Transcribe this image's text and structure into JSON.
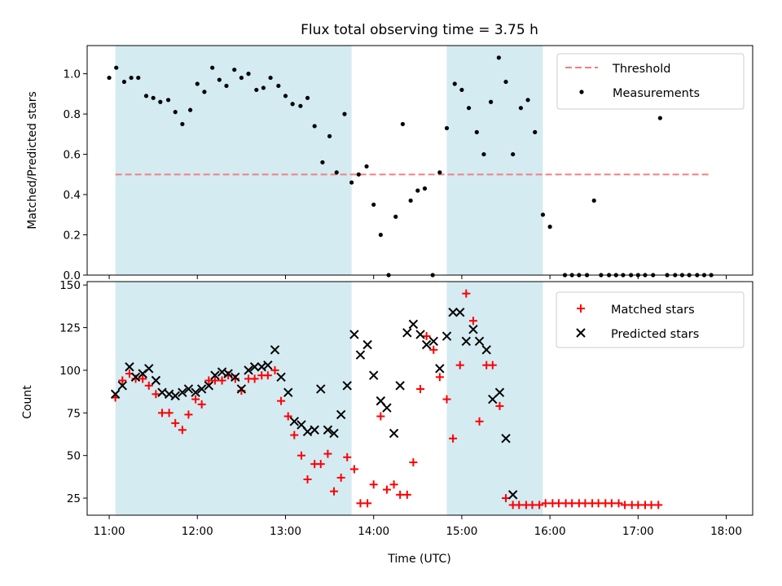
{
  "chart_data": {
    "title": "Flux total observing time = 3.75 h",
    "x_unit": "hours (UTC)",
    "xlabel": "Time (UTC)",
    "xlim": [
      10.75,
      18.3
    ],
    "xticks": [
      11,
      12,
      13,
      14,
      15,
      16,
      17,
      18
    ],
    "xtick_labels": [
      "11:00",
      "12:00",
      "13:00",
      "14:00",
      "15:00",
      "16:00",
      "17:00",
      "18:00"
    ],
    "shaded_intervals": [
      [
        11.07,
        13.75
      ],
      [
        14.83,
        15.92
      ]
    ],
    "shade_color": "#add8e6",
    "panels": [
      {
        "type": "scatter",
        "ylabel": "Matched/Predicted stars",
        "ylim": [
          0,
          1.14
        ],
        "yticks": [
          0.0,
          0.2,
          0.4,
          0.6,
          0.8,
          1.0
        ],
        "ytick_labels": [
          "0.0",
          "0.2",
          "0.4",
          "0.6",
          "0.8",
          "1.0"
        ],
        "legend_position": "top-right",
        "threshold": {
          "name": "Threshold",
          "y": 0.5,
          "x_range": [
            11.07,
            17.82
          ],
          "color": "#f08080"
        },
        "series": [
          {
            "name": "Measurements",
            "marker": "dot",
            "color": "#000000",
            "points": [
              [
                11.0,
                0.98
              ],
              [
                11.08,
                1.03
              ],
              [
                11.17,
                0.96
              ],
              [
                11.25,
                0.98
              ],
              [
                11.33,
                0.98
              ],
              [
                11.42,
                0.89
              ],
              [
                11.5,
                0.88
              ],
              [
                11.58,
                0.86
              ],
              [
                11.67,
                0.87
              ],
              [
                11.75,
                0.81
              ],
              [
                11.83,
                0.75
              ],
              [
                11.92,
                0.82
              ],
              [
                12.0,
                0.95
              ],
              [
                12.08,
                0.91
              ],
              [
                12.17,
                1.03
              ],
              [
                12.25,
                0.97
              ],
              [
                12.33,
                0.94
              ],
              [
                12.42,
                1.02
              ],
              [
                12.5,
                0.98
              ],
              [
                12.58,
                1.0
              ],
              [
                12.67,
                0.92
              ],
              [
                12.75,
                0.93
              ],
              [
                12.83,
                0.98
              ],
              [
                12.92,
                0.94
              ],
              [
                13.0,
                0.89
              ],
              [
                13.08,
                0.85
              ],
              [
                13.17,
                0.84
              ],
              [
                13.25,
                0.88
              ],
              [
                13.33,
                0.74
              ],
              [
                13.42,
                0.56
              ],
              [
                13.5,
                0.69
              ],
              [
                13.58,
                0.51
              ],
              [
                13.67,
                0.8
              ],
              [
                13.75,
                0.46
              ],
              [
                13.83,
                0.5
              ],
              [
                13.92,
                0.54
              ],
              [
                14.0,
                0.35
              ],
              [
                14.08,
                0.2
              ],
              [
                14.17,
                0.0
              ],
              [
                14.25,
                0.29
              ],
              [
                14.33,
                0.75
              ],
              [
                14.42,
                0.37
              ],
              [
                14.5,
                0.42
              ],
              [
                14.58,
                0.43
              ],
              [
                14.67,
                0.0
              ],
              [
                14.75,
                0.51
              ],
              [
                14.83,
                0.73
              ],
              [
                14.92,
                0.95
              ],
              [
                15.0,
                0.92
              ],
              [
                15.08,
                0.83
              ],
              [
                15.17,
                0.71
              ],
              [
                15.25,
                0.6
              ],
              [
                15.33,
                0.86
              ],
              [
                15.42,
                1.08
              ],
              [
                15.5,
                0.96
              ],
              [
                15.58,
                0.6
              ],
              [
                15.67,
                0.83
              ],
              [
                15.75,
                0.87
              ],
              [
                15.83,
                0.71
              ],
              [
                15.92,
                0.3
              ],
              [
                16.0,
                0.24
              ],
              [
                16.17,
                0.0
              ],
              [
                16.25,
                0.0
              ],
              [
                16.33,
                0.0
              ],
              [
                16.42,
                0.0
              ],
              [
                16.5,
                0.37
              ],
              [
                16.58,
                0.0
              ],
              [
                16.67,
                0.0
              ],
              [
                16.75,
                0.0
              ],
              [
                16.83,
                0.0
              ],
              [
                16.92,
                0.0
              ],
              [
                17.0,
                0.0
              ],
              [
                17.08,
                0.0
              ],
              [
                17.17,
                0.0
              ],
              [
                17.25,
                0.78
              ],
              [
                17.33,
                0.0
              ],
              [
                17.42,
                0.0
              ],
              [
                17.5,
                0.0
              ],
              [
                17.58,
                0.0
              ],
              [
                17.67,
                0.0
              ],
              [
                17.75,
                0.0
              ],
              [
                17.83,
                0.0
              ]
            ]
          }
        ]
      },
      {
        "type": "scatter",
        "ylabel": "Count",
        "ylim": [
          15,
          152
        ],
        "yticks": [
          25,
          50,
          75,
          100,
          125,
          150
        ],
        "ytick_labels": [
          "25",
          "50",
          "75",
          "100",
          "125",
          "150"
        ],
        "legend_position": "top-right",
        "series": [
          {
            "name": "Matched stars",
            "marker": "plus",
            "color": "#ff0000",
            "points": [
              [
                11.07,
                84
              ],
              [
                11.15,
                94
              ],
              [
                11.23,
                98
              ],
              [
                11.3,
                95
              ],
              [
                11.38,
                95
              ],
              [
                11.45,
                91
              ],
              [
                11.53,
                86
              ],
              [
                11.6,
                75
              ],
              [
                11.68,
                75
              ],
              [
                11.75,
                69
              ],
              [
                11.83,
                65
              ],
              [
                11.9,
                74
              ],
              [
                11.98,
                83
              ],
              [
                12.05,
                80
              ],
              [
                12.13,
                94
              ],
              [
                12.2,
                94
              ],
              [
                12.28,
                94
              ],
              [
                12.35,
                97
              ],
              [
                12.43,
                95
              ],
              [
                12.5,
                88
              ],
              [
                12.58,
                95
              ],
              [
                12.65,
                95
              ],
              [
                12.73,
                97
              ],
              [
                12.8,
                97
              ],
              [
                12.88,
                100
              ],
              [
                12.95,
                82
              ],
              [
                13.03,
                73
              ],
              [
                13.1,
                62
              ],
              [
                13.18,
                50
              ],
              [
                13.25,
                36
              ],
              [
                13.33,
                45
              ],
              [
                13.4,
                45
              ],
              [
                13.48,
                51
              ],
              [
                13.55,
                29
              ],
              [
                13.63,
                37
              ],
              [
                13.7,
                49
              ],
              [
                13.78,
                42
              ],
              [
                13.85,
                22
              ],
              [
                13.93,
                22
              ],
              [
                14.0,
                33
              ],
              [
                14.08,
                73
              ],
              [
                14.15,
                30
              ],
              [
                14.23,
                33
              ],
              [
                14.3,
                27
              ],
              [
                14.38,
                27
              ],
              [
                14.45,
                46
              ],
              [
                14.53,
                89
              ],
              [
                14.6,
                120
              ],
              [
                14.68,
                112
              ],
              [
                14.75,
                96
              ],
              [
                14.83,
                83
              ],
              [
                14.9,
                60
              ],
              [
                14.98,
                103
              ],
              [
                15.05,
                145
              ],
              [
                15.13,
                129
              ],
              [
                15.2,
                70
              ],
              [
                15.28,
                103
              ],
              [
                15.35,
                103
              ],
              [
                15.43,
                79
              ],
              [
                15.5,
                25
              ],
              [
                15.58,
                21
              ],
              [
                15.65,
                21
              ],
              [
                15.73,
                21
              ],
              [
                15.8,
                21
              ],
              [
                15.88,
                21
              ],
              [
                15.95,
                22
              ],
              [
                16.03,
                22
              ],
              [
                16.1,
                22
              ],
              [
                16.18,
                22
              ],
              [
                16.25,
                22
              ],
              [
                16.33,
                22
              ],
              [
                16.4,
                22
              ],
              [
                16.48,
                22
              ],
              [
                16.55,
                22
              ],
              [
                16.63,
                22
              ],
              [
                16.7,
                22
              ],
              [
                16.78,
                22
              ],
              [
                16.85,
                21
              ],
              [
                16.93,
                21
              ],
              [
                17.0,
                21
              ],
              [
                17.08,
                21
              ],
              [
                17.15,
                21
              ],
              [
                17.23,
                21
              ]
            ]
          },
          {
            "name": "Predicted stars",
            "marker": "x",
            "color": "#000000",
            "points": [
              [
                11.07,
                86
              ],
              [
                11.15,
                91
              ],
              [
                11.23,
                102
              ],
              [
                11.3,
                96
              ],
              [
                11.38,
                98
              ],
              [
                11.45,
                101
              ],
              [
                11.53,
                94
              ],
              [
                11.6,
                87
              ],
              [
                11.68,
                86
              ],
              [
                11.75,
                85
              ],
              [
                11.83,
                87
              ],
              [
                11.9,
                89
              ],
              [
                11.98,
                87
              ],
              [
                12.05,
                89
              ],
              [
                12.13,
                91
              ],
              [
                12.2,
                97
              ],
              [
                12.28,
                99
              ],
              [
                12.35,
                98
              ],
              [
                12.43,
                96
              ],
              [
                12.5,
                89
              ],
              [
                12.58,
                100
              ],
              [
                12.65,
                102
              ],
              [
                12.73,
                102
              ],
              [
                12.8,
                103
              ],
              [
                12.88,
                112
              ],
              [
                12.95,
                96
              ],
              [
                13.03,
                87
              ],
              [
                13.1,
                70
              ],
              [
                13.18,
                68
              ],
              [
                13.25,
                64
              ],
              [
                13.33,
                65
              ],
              [
                13.4,
                89
              ],
              [
                13.48,
                65
              ],
              [
                13.55,
                63
              ],
              [
                13.63,
                74
              ],
              [
                13.7,
                91
              ],
              [
                13.78,
                121
              ],
              [
                13.85,
                109
              ],
              [
                13.93,
                115
              ],
              [
                14.0,
                97
              ],
              [
                14.08,
                82
              ],
              [
                14.15,
                78
              ],
              [
                14.23,
                63
              ],
              [
                14.3,
                91
              ],
              [
                14.38,
                122
              ],
              [
                14.45,
                127
              ],
              [
                14.53,
                121
              ],
              [
                14.6,
                115
              ],
              [
                14.68,
                117
              ],
              [
                14.75,
                101
              ],
              [
                14.83,
                120
              ],
              [
                14.9,
                134
              ],
              [
                14.98,
                134
              ],
              [
                15.05,
                117
              ],
              [
                15.13,
                124
              ],
              [
                15.2,
                117
              ],
              [
                15.28,
                112
              ],
              [
                15.35,
                83
              ],
              [
                15.43,
                87
              ],
              [
                15.5,
                60
              ],
              [
                15.58,
                27
              ]
            ]
          }
        ]
      }
    ]
  }
}
